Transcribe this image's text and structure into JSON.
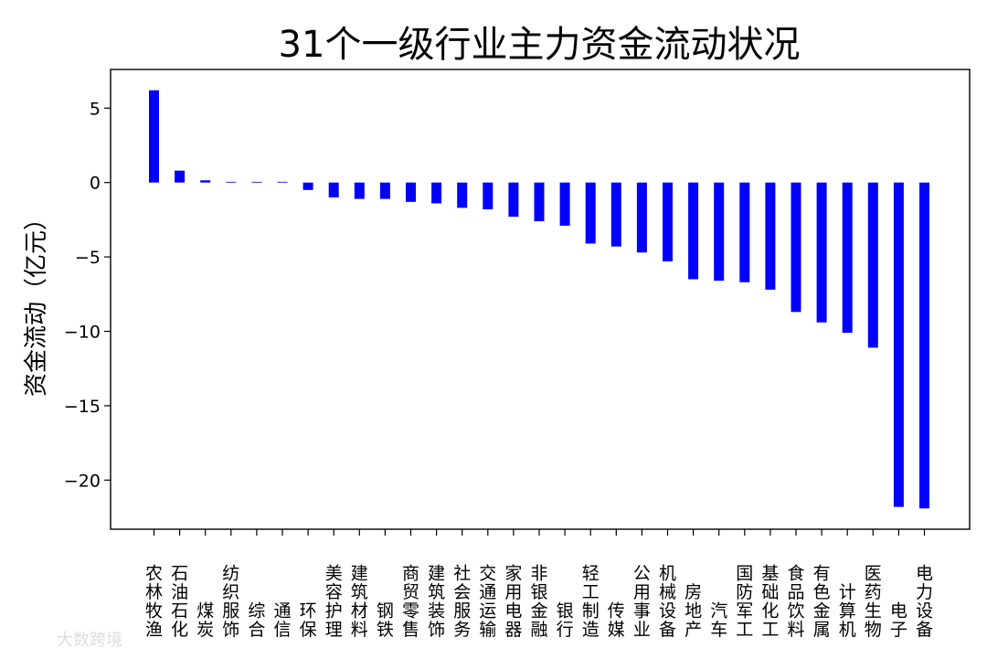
{
  "chart_data": {
    "type": "bar",
    "title": "31个一级行业主力资金流动状况",
    "xlabel": "",
    "ylabel": "资金流动（亿元）",
    "ylim": [
      -23.3,
      7.6
    ],
    "yticks": [
      5,
      0,
      -5,
      -10,
      -15,
      -20
    ],
    "ytick_labels": [
      "5",
      "0",
      "−5",
      "−10",
      "−15",
      "−20"
    ],
    "bar_color": "#0000ff",
    "grid": false,
    "categories": [
      "农林牧渔",
      "石油石化",
      "煤炭",
      "纺织服饰",
      "综合",
      "通信",
      "环保",
      "美容护理",
      "建筑材料",
      "钢铁",
      "商贸零售",
      "建筑装饰",
      "社会服务",
      "交通运输",
      "家用电器",
      "非银金融",
      "银行",
      "轻工制造",
      "传媒",
      "公用事业",
      "机械设备",
      "房地产",
      "汽车",
      "国防军工",
      "基础化工",
      "食品饮料",
      "有色金属",
      "计算机",
      "医药生物",
      "电子",
      "电力设备"
    ],
    "values": [
      6.2,
      0.8,
      0.15,
      0.05,
      0.05,
      0.05,
      -0.5,
      -1.0,
      -1.1,
      -1.1,
      -1.3,
      -1.4,
      -1.7,
      -1.8,
      -2.3,
      -2.6,
      -2.9,
      -4.1,
      -4.3,
      -4.7,
      -5.3,
      -6.5,
      -6.6,
      -6.7,
      -7.2,
      -8.7,
      -9.4,
      -10.1,
      -11.1,
      -21.8,
      -21.9
    ]
  },
  "watermark": {
    "text": "大数跨境"
  }
}
